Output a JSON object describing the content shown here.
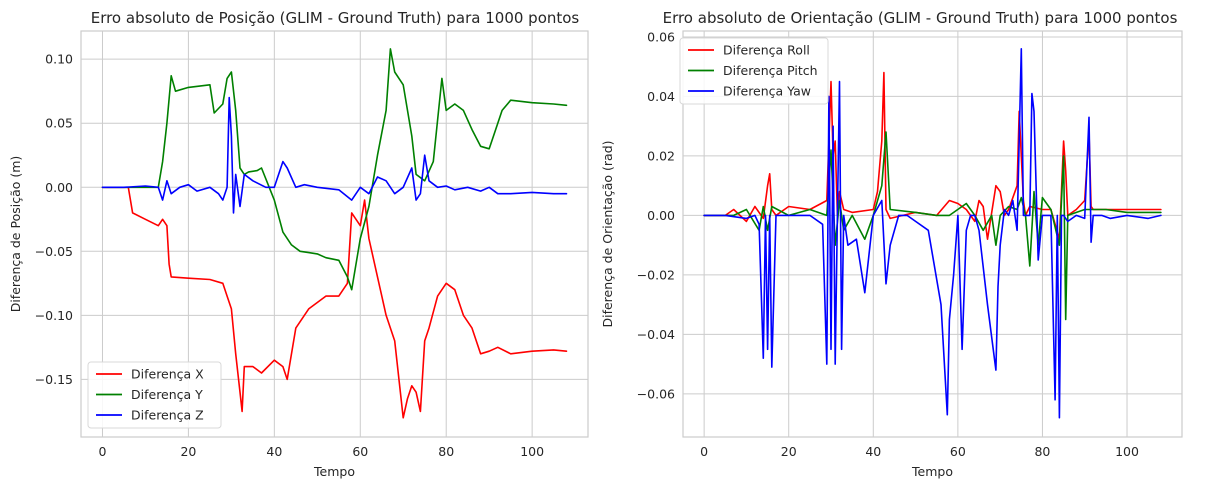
{
  "chart_data": [
    {
      "type": "line",
      "title": "Erro absoluto de Posição (GLIM - Ground Truth) para 1000 pontos",
      "xlabel": "Tempo",
      "ylabel": "Diferença de Posição (m)",
      "xlim": [
        -5,
        113
      ],
      "ylim": [
        -0.195,
        0.122
      ],
      "xticks": [
        0,
        20,
        40,
        60,
        80,
        100
      ],
      "xtick_labels": [
        "0",
        "20",
        "40",
        "60",
        "80",
        "100"
      ],
      "yticks": [
        -0.15,
        -0.1,
        -0.05,
        0.0,
        0.05,
        0.1
      ],
      "ytick_labels": [
        "−0.15",
        "−0.10",
        "−0.05",
        "0.00",
        "0.05",
        "0.10"
      ],
      "grid": true,
      "legend_position": "lower-left",
      "series": [
        {
          "name": "Diferença X",
          "color": "#ff0000",
          "x": [
            0,
            6,
            7,
            10,
            13,
            14,
            15,
            15.5,
            16,
            20,
            25,
            28,
            29,
            30,
            31,
            32,
            32.5,
            33,
            35,
            37,
            40,
            42,
            43,
            45,
            48,
            50,
            52,
            55,
            57,
            58,
            60,
            61,
            62,
            64,
            66,
            68,
            70,
            71,
            72,
            73,
            74,
            75,
            76,
            78,
            80,
            82,
            84,
            86,
            88,
            90,
            92,
            95,
            100,
            105,
            108
          ],
          "y": [
            0.0,
            0.0,
            -0.02,
            -0.025,
            -0.03,
            -0.025,
            -0.03,
            -0.06,
            -0.07,
            -0.071,
            -0.072,
            -0.075,
            -0.085,
            -0.095,
            -0.13,
            -0.16,
            -0.175,
            -0.14,
            -0.14,
            -0.145,
            -0.135,
            -0.14,
            -0.15,
            -0.11,
            -0.095,
            -0.09,
            -0.085,
            -0.085,
            -0.075,
            -0.02,
            -0.03,
            -0.01,
            -0.04,
            -0.07,
            -0.1,
            -0.12,
            -0.18,
            -0.165,
            -0.155,
            -0.16,
            -0.175,
            -0.12,
            -0.11,
            -0.085,
            -0.075,
            -0.08,
            -0.1,
            -0.11,
            -0.13,
            -0.128,
            -0.125,
            -0.13,
            -0.128,
            -0.127,
            -0.128
          ]
        },
        {
          "name": "Diferença Y",
          "color": "#008000",
          "x": [
            0,
            13,
            14,
            15,
            16,
            17,
            20,
            25,
            26,
            28,
            29,
            30,
            31,
            32,
            33,
            34,
            36,
            37,
            40,
            42,
            44,
            46,
            48,
            50,
            52,
            55,
            57,
            58,
            60,
            62,
            64,
            66,
            67,
            68,
            70,
            72,
            73,
            75,
            77,
            79,
            80,
            82,
            84,
            86,
            88,
            90,
            91,
            93,
            95,
            100,
            105,
            108
          ],
          "y": [
            0.0,
            0.0,
            0.02,
            0.05,
            0.087,
            0.075,
            0.078,
            0.08,
            0.058,
            0.065,
            0.085,
            0.09,
            0.06,
            0.015,
            0.01,
            0.012,
            0.013,
            0.015,
            -0.01,
            -0.035,
            -0.045,
            -0.05,
            -0.051,
            -0.052,
            -0.055,
            -0.057,
            -0.07,
            -0.08,
            -0.04,
            -0.015,
            0.025,
            0.06,
            0.108,
            0.09,
            0.08,
            0.04,
            0.01,
            0.005,
            0.02,
            0.085,
            0.06,
            0.065,
            0.06,
            0.045,
            0.032,
            0.03,
            0.04,
            0.06,
            0.068,
            0.066,
            0.065,
            0.064
          ]
        },
        {
          "name": "Diferença Z",
          "color": "#0000ff",
          "x": [
            0,
            5,
            10,
            13,
            14,
            15,
            16,
            18,
            20,
            22,
            25,
            27,
            28,
            29,
            29.5,
            30,
            30.5,
            31,
            32,
            33,
            35,
            38,
            40,
            42,
            43,
            45,
            47,
            50,
            55,
            58,
            60,
            62,
            64,
            66,
            68,
            70,
            72,
            73,
            74,
            75,
            76,
            78,
            80,
            82,
            85,
            88,
            90,
            92,
            95,
            100,
            105,
            108
          ],
          "y": [
            0.0,
            0.0,
            0.001,
            0.0,
            -0.01,
            0.005,
            -0.005,
            0.0,
            0.002,
            -0.003,
            0.0,
            -0.005,
            -0.01,
            0.0,
            0.07,
            0.04,
            -0.02,
            0.01,
            -0.015,
            0.01,
            0.005,
            0.0,
            0.0,
            0.02,
            0.015,
            0.0,
            0.002,
            0.0,
            -0.002,
            -0.01,
            0.0,
            -0.005,
            0.008,
            0.005,
            -0.005,
            0.0,
            0.015,
            -0.01,
            -0.005,
            0.025,
            0.005,
            0.0,
            0.001,
            -0.002,
            0.0,
            -0.003,
            0.0,
            -0.005,
            -0.005,
            -0.004,
            -0.005,
            -0.005
          ]
        }
      ]
    },
    {
      "type": "line",
      "title": "Erro absoluto de Orientação (GLIM - Ground Truth) para 1000 pontos",
      "xlabel": "Tempo",
      "ylabel": "Diferença de Orientação (rad)",
      "xlim": [
        -5,
        113
      ],
      "ylim": [
        -0.0745,
        0.062
      ],
      "xticks": [
        0,
        20,
        40,
        60,
        80,
        100
      ],
      "xtick_labels": [
        "0",
        "20",
        "40",
        "60",
        "80",
        "100"
      ],
      "yticks": [
        -0.06,
        -0.04,
        -0.02,
        0.0,
        0.02,
        0.04,
        0.06
      ],
      "ytick_labels": [
        "−0.06",
        "−0.04",
        "−0.02",
        "0.00",
        "0.02",
        "0.04",
        "0.06"
      ],
      "grid": true,
      "legend_position": "upper-left",
      "series": [
        {
          "name": "Diferença Roll",
          "color": "#ff0000",
          "x": [
            0,
            5,
            7,
            10,
            12,
            14,
            15,
            15.5,
            16,
            17,
            20,
            25,
            29,
            30,
            30.5,
            31,
            31.5,
            32,
            33,
            35,
            40,
            41,
            42,
            42.5,
            43,
            44,
            50,
            55,
            58,
            60,
            62,
            64,
            65,
            66,
            67,
            69,
            70,
            71,
            72,
            74,
            74.5,
            75,
            75.5,
            76,
            77,
            80,
            82,
            84,
            85,
            85.5,
            86,
            88,
            90,
            91,
            91.5,
            92,
            95,
            100,
            108
          ],
          "y": [
            0.0,
            0.0,
            0.002,
            -0.002,
            0.003,
            -0.001,
            0.01,
            0.014,
            0.002,
            0.0,
            0.003,
            0.002,
            0.005,
            0.045,
            0.02,
            0.025,
            0.0,
            0.008,
            0.002,
            0.001,
            0.002,
            0.008,
            0.025,
            0.048,
            0.002,
            -0.001,
            0.001,
            0.0,
            0.005,
            0.004,
            0.002,
            -0.002,
            0.005,
            0.003,
            -0.008,
            0.01,
            0.008,
            0.0,
            0.002,
            0.01,
            0.035,
            0.02,
            0.005,
            0.0,
            0.003,
            0.002,
            0.002,
            -0.008,
            0.025,
            0.015,
            0.0,
            0.002,
            0.005,
            0.028,
            0.003,
            0.002,
            0.002,
            0.002,
            0.002
          ]
        },
        {
          "name": "Diferença Pitch",
          "color": "#008000",
          "x": [
            0,
            5,
            7,
            10,
            13,
            14,
            15,
            16,
            20,
            25,
            29,
            30,
            31,
            32,
            33,
            35,
            38,
            40,
            42,
            43,
            44,
            50,
            55,
            58,
            62,
            64,
            66,
            68,
            69,
            70,
            72,
            74,
            75,
            76,
            77,
            78,
            79,
            80,
            82,
            84,
            85,
            85.5,
            86,
            90,
            95,
            100,
            108
          ],
          "y": [
            0.0,
            0.0,
            0.0,
            0.002,
            -0.005,
            0.003,
            -0.005,
            0.003,
            0.0,
            0.002,
            0.0,
            0.022,
            -0.01,
            0.005,
            -0.005,
            0.0,
            -0.008,
            0.0,
            0.01,
            0.028,
            0.002,
            0.001,
            0.0,
            0.0,
            0.004,
            0.0,
            -0.005,
            0.0,
            -0.01,
            0.0,
            0.003,
            0.002,
            0.006,
            0.0,
            -0.017,
            0.008,
            -0.01,
            0.006,
            0.002,
            -0.01,
            0.02,
            -0.035,
            0.0,
            0.002,
            0.002,
            0.001,
            0.001
          ]
        },
        {
          "name": "Diferença Yaw",
          "color": "#0000ff",
          "x": [
            0,
            5,
            10,
            12,
            13,
            14,
            14.5,
            15,
            15.5,
            16,
            17,
            20,
            25,
            28,
            29,
            29.5,
            30,
            30.5,
            31,
            31.5,
            32,
            32.5,
            33,
            34,
            36,
            38,
            40,
            42,
            43,
            44,
            46,
            48,
            50,
            53,
            56,
            57.5,
            58,
            59,
            60,
            61,
            62,
            63,
            64,
            65,
            67,
            69,
            69.5,
            70,
            71,
            72,
            73,
            74,
            75,
            75.5,
            76,
            77,
            77.5,
            78,
            79,
            80,
            82,
            83,
            83.5,
            84,
            84.5,
            85,
            86,
            88,
            90,
            91,
            91.5,
            92,
            94,
            96,
            100,
            105,
            108
          ],
          "y": [
            0.0,
            0.0,
            -0.001,
            0.0,
            -0.003,
            -0.048,
            0.0,
            -0.045,
            0.0,
            -0.051,
            0.0,
            0.0,
            0.0,
            -0.003,
            -0.05,
            0.04,
            -0.045,
            0.03,
            -0.05,
            0.0,
            0.045,
            -0.045,
            0.0,
            -0.01,
            -0.008,
            -0.026,
            0.0,
            0.005,
            -0.023,
            -0.01,
            0.0,
            0.0,
            -0.002,
            -0.005,
            -0.03,
            -0.067,
            -0.035,
            -0.02,
            0.0,
            -0.045,
            -0.005,
            0.0,
            0.0,
            -0.005,
            -0.03,
            -0.052,
            -0.024,
            -0.01,
            0.002,
            0.0,
            0.005,
            -0.005,
            0.056,
            0.0,
            0.0,
            0.0,
            0.041,
            0.035,
            -0.015,
            0.0,
            0.0,
            -0.062,
            0.0,
            -0.068,
            0.0,
            0.0,
            -0.002,
            0.0,
            -0.001,
            0.033,
            -0.009,
            0.0,
            0.0,
            -0.001,
            0.0,
            -0.001,
            0.0
          ]
        }
      ]
    }
  ]
}
